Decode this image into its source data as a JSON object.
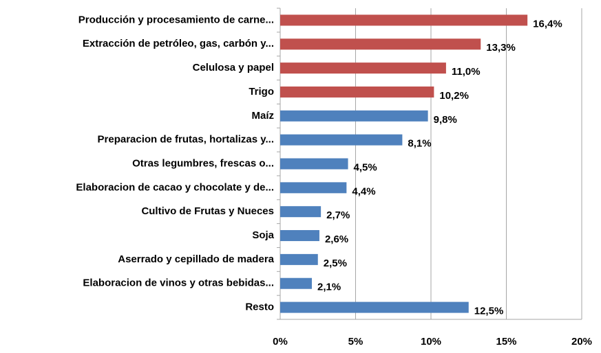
{
  "chart_data": {
    "type": "barh",
    "categories": [
      "Producción y procesamiento de carne...",
      "Extracción de petróleo, gas, carbón y...",
      "Celulosa y papel",
      "Trigo",
      "Maíz",
      "Preparacion de frutas, hortalizas y...",
      "Otras legumbres, frescas o...",
      "Elaboracion de cacao  y chocolate  y de...",
      "Cultivo de Frutas y Nueces",
      "Soja",
      "Aserrado y cepillado de madera",
      "Elaboracion de vinos y otras bebidas...",
      "Resto"
    ],
    "values": [
      16.4,
      13.3,
      11.0,
      10.2,
      9.8,
      8.1,
      4.5,
      4.4,
      2.7,
      2.6,
      2.5,
      2.1,
      12.5
    ],
    "value_labels": [
      "16,4%",
      "13,3%",
      "11,0%",
      "10,2%",
      "9,8%",
      "8,1%",
      "4,5%",
      "4,4%",
      "2,7%",
      "2,6%",
      "2,5%",
      "2,1%",
      "12,5%"
    ],
    "colors": [
      "#c0504d",
      "#c0504d",
      "#c0504d",
      "#c0504d",
      "#4f81bd",
      "#4f81bd",
      "#4f81bd",
      "#4f81bd",
      "#4f81bd",
      "#4f81bd",
      "#4f81bd",
      "#4f81bd",
      "#4f81bd"
    ],
    "xlim": [
      0,
      20
    ],
    "xticks": [
      {
        "value": 0,
        "label": "0%"
      },
      {
        "value": 5,
        "label": "5%"
      },
      {
        "value": 10,
        "label": "10%"
      },
      {
        "value": 15,
        "label": "15%"
      },
      {
        "value": 20,
        "label": "20%"
      }
    ],
    "grid": true
  }
}
